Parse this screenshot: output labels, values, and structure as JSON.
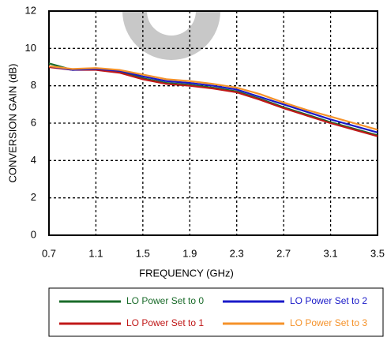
{
  "chart_data": {
    "type": "line",
    "x_label": "FREQUENCY (GHz)",
    "y_label": "CONVERSION GAIN (dB)",
    "x": [
      0.7,
      0.9,
      1.1,
      1.3,
      1.5,
      1.7,
      1.9,
      2.1,
      2.3,
      2.5,
      2.7,
      2.9,
      3.1,
      3.3,
      3.5
    ],
    "series": [
      {
        "name": "LO Power Set to 0",
        "color": "#1a6b2a",
        "values": [
          9.2,
          8.85,
          8.9,
          8.75,
          8.4,
          8.15,
          8.05,
          7.9,
          7.7,
          7.3,
          6.85,
          6.45,
          6.05,
          5.7,
          5.35
        ]
      },
      {
        "name": "LO Power Set to 1",
        "color": "#c01818",
        "values": [
          9.0,
          8.85,
          8.85,
          8.7,
          8.35,
          8.1,
          8.0,
          7.85,
          7.65,
          7.25,
          6.8,
          6.4,
          6.0,
          5.65,
          5.3
        ]
      },
      {
        "name": "LO Power Set to 2",
        "color": "#1a1ac8",
        "values": [
          9.05,
          8.85,
          8.9,
          8.8,
          8.5,
          8.25,
          8.15,
          8.0,
          7.8,
          7.4,
          7.0,
          6.6,
          6.2,
          5.85,
          5.5
        ]
      },
      {
        "name": "LO Power Set to 3",
        "color": "#f5922a",
        "values": [
          9.05,
          8.9,
          8.95,
          8.85,
          8.6,
          8.35,
          8.25,
          8.1,
          7.9,
          7.55,
          7.1,
          6.7,
          6.35,
          6.0,
          5.65
        ]
      }
    ],
    "xlim": [
      0.7,
      3.5
    ],
    "xticks": [
      0.7,
      1.1,
      1.5,
      1.9,
      2.3,
      2.7,
      3.1,
      3.5
    ],
    "ylim": [
      0,
      12
    ],
    "yticks": [
      0,
      2,
      4,
      6,
      8,
      10,
      12
    ],
    "grid": true
  }
}
